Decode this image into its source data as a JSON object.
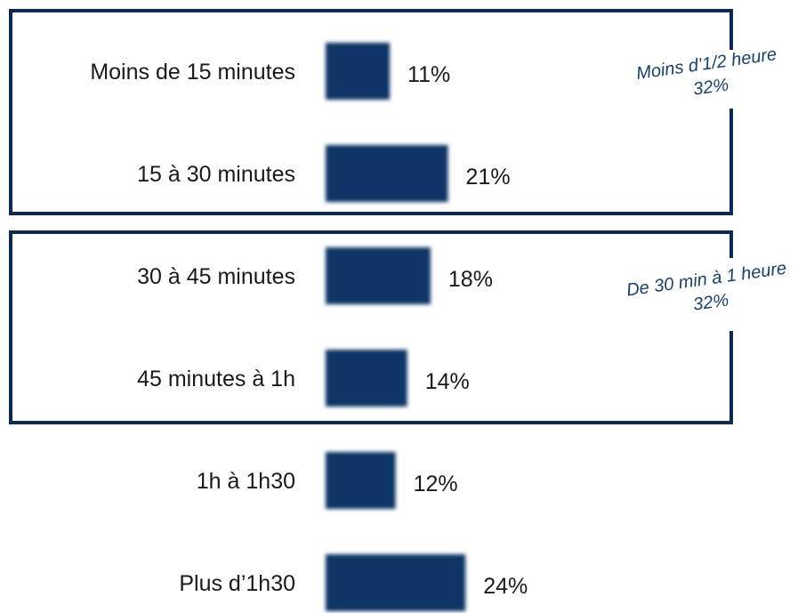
{
  "chart_data": {
    "type": "bar",
    "orientation": "horizontal",
    "title": "",
    "xlabel": "",
    "ylabel": "",
    "categories": [
      "Moins de 15 minutes",
      "15 à 30 minutes",
      "30 à 45 minutes",
      "45 minutes à 1h",
      "1h à 1h30",
      "Plus d’1h30"
    ],
    "values": [
      11,
      21,
      18,
      14,
      12,
      24
    ],
    "value_labels": [
      "11%",
      "21%",
      "18%",
      "14%",
      "12%",
      "24%"
    ],
    "xlim": [
      0,
      30
    ],
    "grid": false,
    "legend": "none",
    "groups": [
      {
        "label": "Moins d’1/2 heure",
        "value_label": "32%",
        "categories": [
          "Moins de 15 minutes",
          "15 à 30 minutes"
        ]
      },
      {
        "label": "De 30 min à 1 heure",
        "value_label": "32%",
        "categories": [
          "30 à 45 minutes",
          "45 minutes à 1h"
        ]
      }
    ],
    "colors": {
      "bar": "#0d3466",
      "frame": "#0d2a52",
      "group_text": "#17406e",
      "text": "#1a1a1a"
    }
  }
}
